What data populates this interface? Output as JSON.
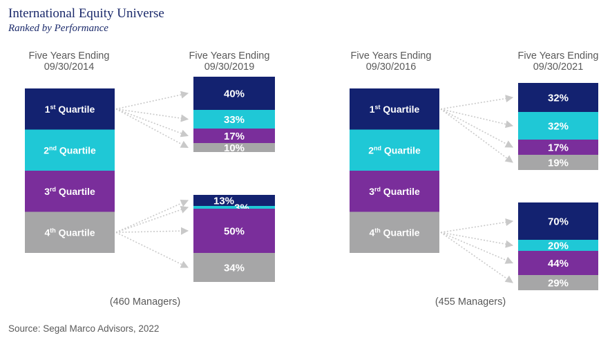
{
  "title": "International Equity Universe",
  "subtitle": "Ranked by Performance",
  "source": "Source: Segal Marco Advisors, 2022",
  "colors": {
    "q1": "#132270",
    "q2": "#1fc8d6",
    "q3": "#7a2e9b",
    "q4": "#a6a6a7",
    "arrow": "#c9c9c9"
  },
  "chart_data": [
    {
      "type": "flow-bar",
      "start_period": {
        "line1": "Five Years Ending",
        "line2": "09/30/2014"
      },
      "end_period": {
        "line1": "Five Years Ending",
        "line2": "09/30/2019"
      },
      "managers_note": "(460 Managers)",
      "start_quartiles": [
        {
          "ordinal": "1",
          "suffix": "st",
          "label": "Quartile"
        },
        {
          "ordinal": "2",
          "suffix": "nd",
          "label": "Quartile"
        },
        {
          "ordinal": "3",
          "suffix": "rd",
          "label": "Quartile"
        },
        {
          "ordinal": "4",
          "suffix": "th",
          "label": "Quartile"
        }
      ],
      "flows": [
        {
          "from": "1st Quartile",
          "to_quartiles": [
            "1st",
            "2nd",
            "3rd",
            "4th"
          ],
          "percent_labels": [
            "40%",
            "33%",
            "17%",
            "10%"
          ],
          "values": [
            40,
            33,
            17,
            10
          ]
        },
        {
          "from": "4th Quartile",
          "to_quartiles": [
            "1st",
            "2nd",
            "3rd",
            "4th"
          ],
          "percent_labels": [
            "13%",
            "3%",
            "50%",
            "34%"
          ],
          "values": [
            13,
            3,
            50,
            34
          ]
        }
      ]
    },
    {
      "type": "flow-bar",
      "start_period": {
        "line1": "Five Years Ending",
        "line2": "09/30/2016"
      },
      "end_period": {
        "line1": "Five Years Ending",
        "line2": "09/30/2021"
      },
      "managers_note": "(455 Managers)",
      "start_quartiles": [
        {
          "ordinal": "1",
          "suffix": "st",
          "label": "Quartile"
        },
        {
          "ordinal": "2",
          "suffix": "nd",
          "label": "Quartile"
        },
        {
          "ordinal": "3",
          "suffix": "rd",
          "label": "Quartile"
        },
        {
          "ordinal": "4",
          "suffix": "th",
          "label": "Quartile"
        }
      ],
      "flows": [
        {
          "from": "1st Quartile",
          "to_quartiles": [
            "1st",
            "2nd",
            "3rd",
            "4th"
          ],
          "percent_labels": [
            "32%",
            "32%",
            "17%",
            "19%"
          ],
          "values": [
            32,
            32,
            17,
            19
          ]
        },
        {
          "from": "4th Quartile",
          "to_quartiles": [
            "1st",
            "2nd",
            "3rd",
            "4th"
          ],
          "percent_labels": [
            "70%",
            "20%",
            "44%",
            "29%"
          ],
          "values": [
            70,
            20,
            44,
            29
          ]
        }
      ]
    }
  ]
}
